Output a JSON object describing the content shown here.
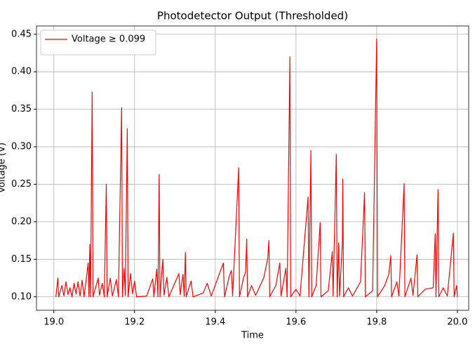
{
  "chart_data": {
    "type": "line",
    "title": "Photodetector Output (Thresholded)",
    "x_label": "Time",
    "y_label": "Voltage (V)",
    "legend": "upper left",
    "grid": true,
    "xlim": [
      18.957,
      20.028
    ],
    "ylim": [
      0.082,
      0.461
    ],
    "xticks": [
      {
        "value": 19,
        "label": "19.0"
      },
      {
        "value": 19.2,
        "label": "19.2"
      },
      {
        "value": 19.4,
        "label": "19.4"
      },
      {
        "value": 19.6,
        "label": "19.6"
      },
      {
        "value": 19.8,
        "label": "19.8"
      },
      {
        "value": 20,
        "label": "20.0"
      }
    ],
    "yticks": [
      {
        "value": 0.1,
        "label": "0.10"
      },
      {
        "value": 0.15,
        "label": "0.15"
      },
      {
        "value": 0.2,
        "label": "0.20"
      },
      {
        "value": 0.25,
        "label": "0.25"
      },
      {
        "value": 0.3,
        "label": "0.30"
      },
      {
        "value": 0.35,
        "label": "0.35"
      },
      {
        "value": 0.4,
        "label": "0.40"
      },
      {
        "value": 0.45,
        "label": "0.45"
      }
    ],
    "series": [
      {
        "name": "Voltage ≥ 0.099",
        "color": "#ff0000",
        "x": [
          19.005,
          19.01,
          19.012,
          19.02,
          19.025,
          19.03,
          19.035,
          19.04,
          19.045,
          19.05,
          19.055,
          19.06,
          19.065,
          19.07,
          19.075,
          19.085,
          19.087,
          19.089,
          19.091,
          19.095,
          19.097,
          19.11,
          19.113,
          19.12,
          19.125,
          19.13,
          19.132,
          19.14,
          19.145,
          19.155,
          19.16,
          19.168,
          19.17,
          19.174,
          19.177,
          19.182,
          19.184,
          19.19,
          19.195,
          19.2,
          19.205,
          19.23,
          19.245,
          19.248,
          19.255,
          19.258,
          19.261,
          19.263,
          19.27,
          19.273,
          19.28,
          19.285,
          19.31,
          19.313,
          19.32,
          19.323,
          19.326,
          19.328,
          19.34,
          19.345,
          19.37,
          19.38,
          19.39,
          19.42,
          19.423,
          19.435,
          19.44,
          19.443,
          19.458,
          19.46,
          19.47,
          19.475,
          19.478,
          19.48,
          19.49,
          19.5,
          19.52,
          19.53,
          19.533,
          19.535,
          19.55,
          19.56,
          19.563,
          19.575,
          19.578,
          19.585,
          19.587,
          19.6,
          19.61,
          19.63,
          19.632,
          19.637,
          19.639,
          19.65,
          19.66,
          19.662,
          19.68,
          19.69,
          19.692,
          19.7,
          19.702,
          19.706,
          19.708,
          19.715,
          19.716,
          19.718,
          19.73,
          19.74,
          19.76,
          19.77,
          19.772,
          19.79,
          19.8,
          19.802,
          19.82,
          19.83,
          19.835,
          19.837,
          19.85,
          19.855,
          19.868,
          19.87,
          19.885,
          19.89,
          19.9,
          19.902,
          19.92,
          19.94,
          19.945,
          19.947,
          19.952,
          19.954,
          19.965,
          19.975,
          19.99,
          19.992,
          19.998,
          20.0
        ],
        "values": [
          0.1,
          0.125,
          0.1,
          0.115,
          0.101,
          0.12,
          0.103,
          0.112,
          0.1,
          0.118,
          0.104,
          0.12,
          0.101,
          0.122,
          0.1,
          0.145,
          0.1,
          0.17,
          0.1,
          0.373,
          0.1,
          0.125,
          0.102,
          0.118,
          0.1,
          0.25,
          0.1,
          0.125,
          0.101,
          0.123,
          0.1,
          0.352,
          0.1,
          0.138,
          0.102,
          0.324,
          0.1,
          0.131,
          0.104,
          0.121,
          0.1,
          0.101,
          0.124,
          0.1,
          0.137,
          0.1,
          0.263,
          0.1,
          0.15,
          0.102,
          0.126,
          0.1,
          0.131,
          0.103,
          0.13,
          0.101,
          0.159,
          0.1,
          0.121,
          0.1,
          0.105,
          0.118,
          0.101,
          0.145,
          0.1,
          0.128,
          0.135,
          0.101,
          0.272,
          0.1,
          0.125,
          0.133,
          0.177,
          0.1,
          0.115,
          0.102,
          0.125,
          0.151,
          0.175,
          0.1,
          0.115,
          0.145,
          0.101,
          0.138,
          0.1,
          0.42,
          0.1,
          0.11,
          0.101,
          0.233,
          0.1,
          0.295,
          0.1,
          0.115,
          0.199,
          0.1,
          0.108,
          0.16,
          0.101,
          0.29,
          0.1,
          0.172,
          0.101,
          0.172,
          0.257,
          0.1,
          0.112,
          0.101,
          0.12,
          0.239,
          0.1,
          0.108,
          0.444,
          0.1,
          0.115,
          0.13,
          0.155,
          0.1,
          0.12,
          0.101,
          0.251,
          0.1,
          0.125,
          0.102,
          0.156,
          0.1,
          0.11,
          0.112,
          0.184,
          0.1,
          0.243,
          0.1,
          0.112,
          0.101,
          0.185,
          0.1,
          0.115,
          0.1
        ]
      }
    ]
  }
}
